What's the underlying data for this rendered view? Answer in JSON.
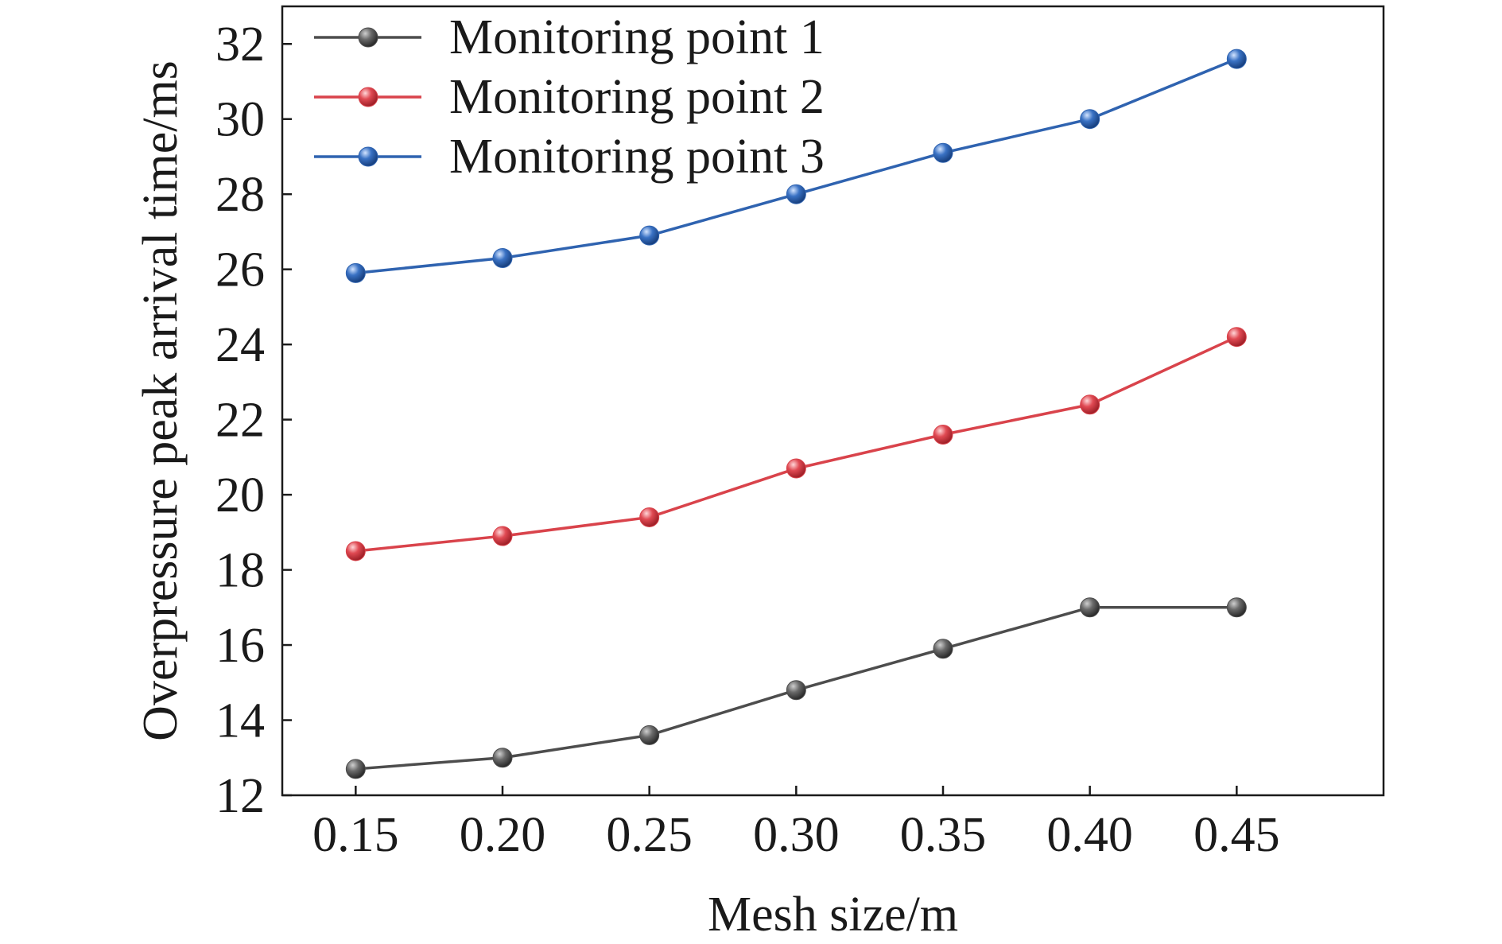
{
  "chart_data": {
    "type": "line",
    "xlabel": "Mesh size/m",
    "ylabel": "Overpressure peak arrival time/ms",
    "x": [
      0.15,
      0.2,
      0.25,
      0.3,
      0.35,
      0.4,
      0.45
    ],
    "x_tick_labels": [
      "0.15",
      "0.20",
      "0.25",
      "0.30",
      "0.35",
      "0.40",
      "0.45"
    ],
    "y_ticks": [
      12,
      14,
      16,
      18,
      20,
      22,
      24,
      26,
      28,
      30,
      32
    ],
    "xlim": [
      0.125,
      0.5
    ],
    "ylim": [
      12,
      33
    ],
    "grid": false,
    "legend_position": "top-left",
    "series": [
      {
        "name": "Monitoring point 1",
        "color": "#4d4d4d",
        "values": [
          12.7,
          13.0,
          13.6,
          14.8,
          15.9,
          17.0,
          17.0
        ]
      },
      {
        "name": "Monitoring point 2",
        "color": "#d9434b",
        "values": [
          18.5,
          18.9,
          19.4,
          20.7,
          21.6,
          22.4,
          24.2
        ]
      },
      {
        "name": "Monitoring point 3",
        "color": "#2f63b0",
        "values": [
          25.9,
          26.3,
          26.9,
          28.0,
          29.1,
          30.0,
          31.6
        ]
      }
    ]
  }
}
